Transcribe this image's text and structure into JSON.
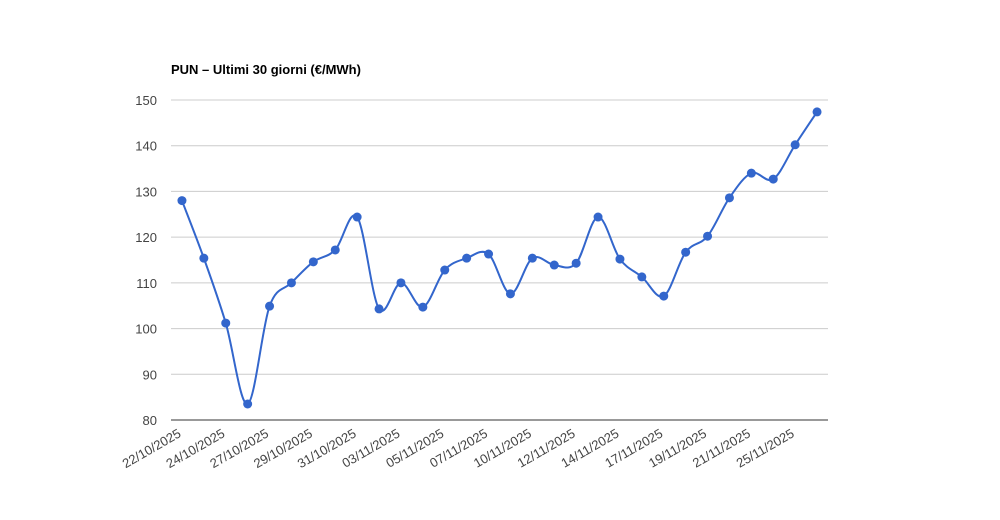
{
  "chart_data": {
    "type": "line",
    "title": "PUN – Ultimi 30 giorni (€/MWh)",
    "categories": [
      "22/10/2025",
      null,
      "24/10/2025",
      null,
      "27/10/2025",
      null,
      "29/10/2025",
      null,
      "31/10/2025",
      null,
      "03/11/2025",
      null,
      "05/11/2025",
      null,
      "07/11/2025",
      null,
      "10/11/2025",
      null,
      "12/11/2025",
      null,
      "14/11/2025",
      null,
      "17/11/2025",
      null,
      "19/11/2025",
      null,
      "21/11/2025",
      null,
      "25/11/2025",
      null
    ],
    "series": [
      {
        "color": "#3366cc",
        "values": [
          128.0,
          115.4,
          101.2,
          83.5,
          104.9,
          110.0,
          114.6,
          117.2,
          124.4,
          104.3,
          110.0,
          104.7,
          112.8,
          115.4,
          116.3,
          107.6,
          115.4,
          113.9,
          114.3,
          124.4,
          115.2,
          111.3,
          107.1,
          116.7,
          120.2,
          128.6,
          134.0,
          132.7,
          140.2,
          147.4
        ]
      }
    ],
    "ylim": [
      80,
      150
    ],
    "yticks": [
      80,
      90,
      100,
      110,
      120,
      130,
      140,
      150
    ],
    "grid": true
  }
}
